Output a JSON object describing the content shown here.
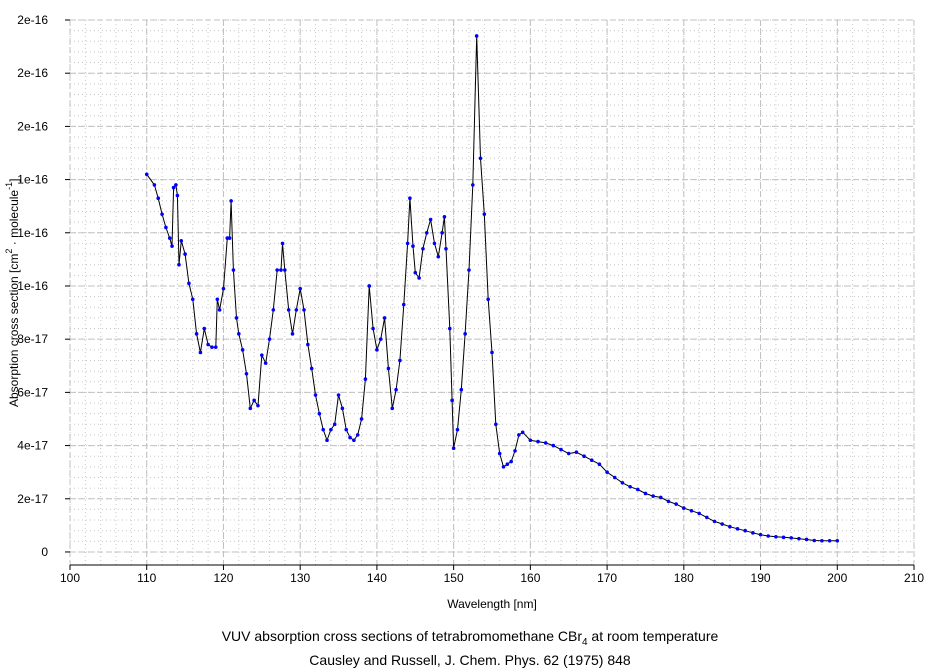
{
  "chart_data": {
    "type": "line",
    "title": "VUV absorption cross sections of tetrabromomethane CBr4 at room temperature",
    "title_parts": {
      "prefix": "VUV absorption cross sections of tetrabromomethane CBr",
      "subscript": "4",
      "suffix": " at room temperature"
    },
    "subtitle": "Causley and Russell, J. Chem. Phys. 62 (1975) 848",
    "xlabel": "Wavelength [nm]",
    "ylabel": "Absorption cross section [cm2 · molecule-1]",
    "ylabel_parts": {
      "a": "Absorption cross section [cm",
      "sup1": "2",
      "b": " · molecule",
      "sup2": "-1",
      "c": "]"
    },
    "xlim": [
      100,
      210
    ],
    "ylim": [
      -4.9e-18,
      2e-16
    ],
    "grid": true,
    "x_ticks": [
      "100",
      "110",
      "120",
      "130",
      "140",
      "150",
      "160",
      "170",
      "180",
      "190",
      "200",
      "210"
    ],
    "y_ticks": [
      "0",
      "2e-17",
      "4e-17",
      "6e-17",
      "8e-17",
      "1e-16",
      "1e-16",
      "1e-16",
      "2e-16",
      "2e-16",
      "2e-16"
    ],
    "y_tick_values": [
      0,
      2e-17,
      4e-17,
      6e-17,
      8e-17,
      1e-16,
      1.2e-16,
      1.4e-16,
      1.6e-16,
      1.8e-16,
      2e-16
    ],
    "colors": {
      "line": "#000000",
      "marker": "#0000ff"
    },
    "series": [
      {
        "name": "CBr4",
        "x": [
          110,
          111,
          111.5,
          112,
          112.5,
          113,
          113.3,
          113.5,
          113.8,
          114,
          114.2,
          114.5,
          115,
          115.5,
          116,
          116.5,
          117,
          117.5,
          118,
          118.5,
          119,
          119.2,
          119.5,
          120,
          120.5,
          120.8,
          121,
          121.3,
          121.7,
          122,
          122.5,
          123,
          123.5,
          124,
          124.5,
          125,
          125.5,
          126,
          126.5,
          127,
          127.5,
          127.7,
          128,
          128.5,
          129,
          129.5,
          130,
          130.5,
          131,
          131.5,
          132,
          132.5,
          133,
          133.5,
          134,
          134.5,
          135,
          135.5,
          136,
          136.5,
          137,
          137.5,
          138,
          138.5,
          139,
          139.5,
          140,
          140.5,
          141,
          141.5,
          142,
          142.5,
          143,
          143.5,
          144,
          144.3,
          144.7,
          145,
          145.5,
          146,
          146.5,
          147,
          147.5,
          148,
          148.5,
          148.8,
          149,
          149.5,
          149.8,
          150,
          150.5,
          151,
          151.5,
          152,
          152.5,
          153,
          153.5,
          154,
          154.5,
          155,
          155.5,
          156,
          156.5,
          157,
          157.5,
          158,
          158.5,
          159,
          160,
          161,
          162,
          163,
          164,
          165,
          166,
          167,
          168,
          169,
          170,
          171,
          172,
          173,
          174,
          175,
          176,
          177,
          178,
          179,
          180,
          181,
          182,
          183,
          184,
          185,
          186,
          187,
          188,
          189,
          190,
          191,
          192,
          193,
          194,
          195,
          196,
          197,
          198,
          199,
          200
        ],
        "y": [
          1.42e-16,
          1.38e-16,
          1.33e-16,
          1.27e-16,
          1.22e-16,
          1.18e-16,
          1.15e-16,
          1.37e-16,
          1.38e-16,
          1.34e-16,
          1.08e-16,
          1.17e-16,
          1.12e-16,
          1.01e-16,
          9.5e-17,
          8.2e-17,
          7.5e-17,
          8.4e-17,
          7.8e-17,
          7.7e-17,
          7.7e-17,
          9.5e-17,
          9.1e-17,
          9.9e-17,
          1.18e-16,
          1.18e-16,
          1.32e-16,
          1.06e-16,
          8.8e-17,
          8.2e-17,
          7.6e-17,
          6.7e-17,
          5.4e-17,
          5.7e-17,
          5.5e-17,
          7.4e-17,
          7.1e-17,
          8e-17,
          9.1e-17,
          1.06e-16,
          1.06e-16,
          1.16e-16,
          1.06e-16,
          9.1e-17,
          8.2e-17,
          9.1e-17,
          9.9e-17,
          9.1e-17,
          7.8e-17,
          6.9e-17,
          5.9e-17,
          5.2e-17,
          4.6e-17,
          4.2e-17,
          4.6e-17,
          4.8e-17,
          5.9e-17,
          5.4e-17,
          4.6e-17,
          4.3e-17,
          4.2e-17,
          4.4e-17,
          5e-17,
          6.5e-17,
          1e-16,
          8.4e-17,
          7.6e-17,
          8e-17,
          8.8e-17,
          6.9e-17,
          5.4e-17,
          6.1e-17,
          7.2e-17,
          9.3e-17,
          1.16e-16,
          1.33e-16,
          1.15e-16,
          1.05e-16,
          1.03e-16,
          1.14e-16,
          1.2e-16,
          1.25e-16,
          1.16e-16,
          1.11e-16,
          1.2e-16,
          1.26e-16,
          1.14e-16,
          8.4e-17,
          5.7e-17,
          3.9e-17,
          4.6e-17,
          6.1e-17,
          8.2e-17,
          1.06e-16,
          1.38e-16,
          1.94e-16,
          1.48e-16,
          1.27e-16,
          9.5e-17,
          7.5e-17,
          4.8e-17,
          3.7e-17,
          3.2e-17,
          3.3e-17,
          3.4e-17,
          3.8e-17,
          4.4e-17,
          4.5e-17,
          4.2e-17,
          4.15e-17,
          4.1e-17,
          4e-17,
          3.85e-17,
          3.7e-17,
          3.75e-17,
          3.6e-17,
          3.45e-17,
          3.3e-17,
          3e-17,
          2.8e-17,
          2.6e-17,
          2.45e-17,
          2.35e-17,
          2.2e-17,
          2.1e-17,
          2.05e-17,
          1.9e-17,
          1.8e-17,
          1.65e-17,
          1.55e-17,
          1.45e-17,
          1.3e-17,
          1.15e-17,
          1.05e-17,
          9.5e-18,
          8.7e-18,
          8e-18,
          7.2e-18,
          6.5e-18,
          6e-18,
          5.7e-18,
          5.5e-18,
          5.3e-18,
          5e-18,
          4.7e-18,
          4.3e-18,
          4.2e-18,
          4.2e-18,
          4.2e-18
        ]
      }
    ]
  }
}
